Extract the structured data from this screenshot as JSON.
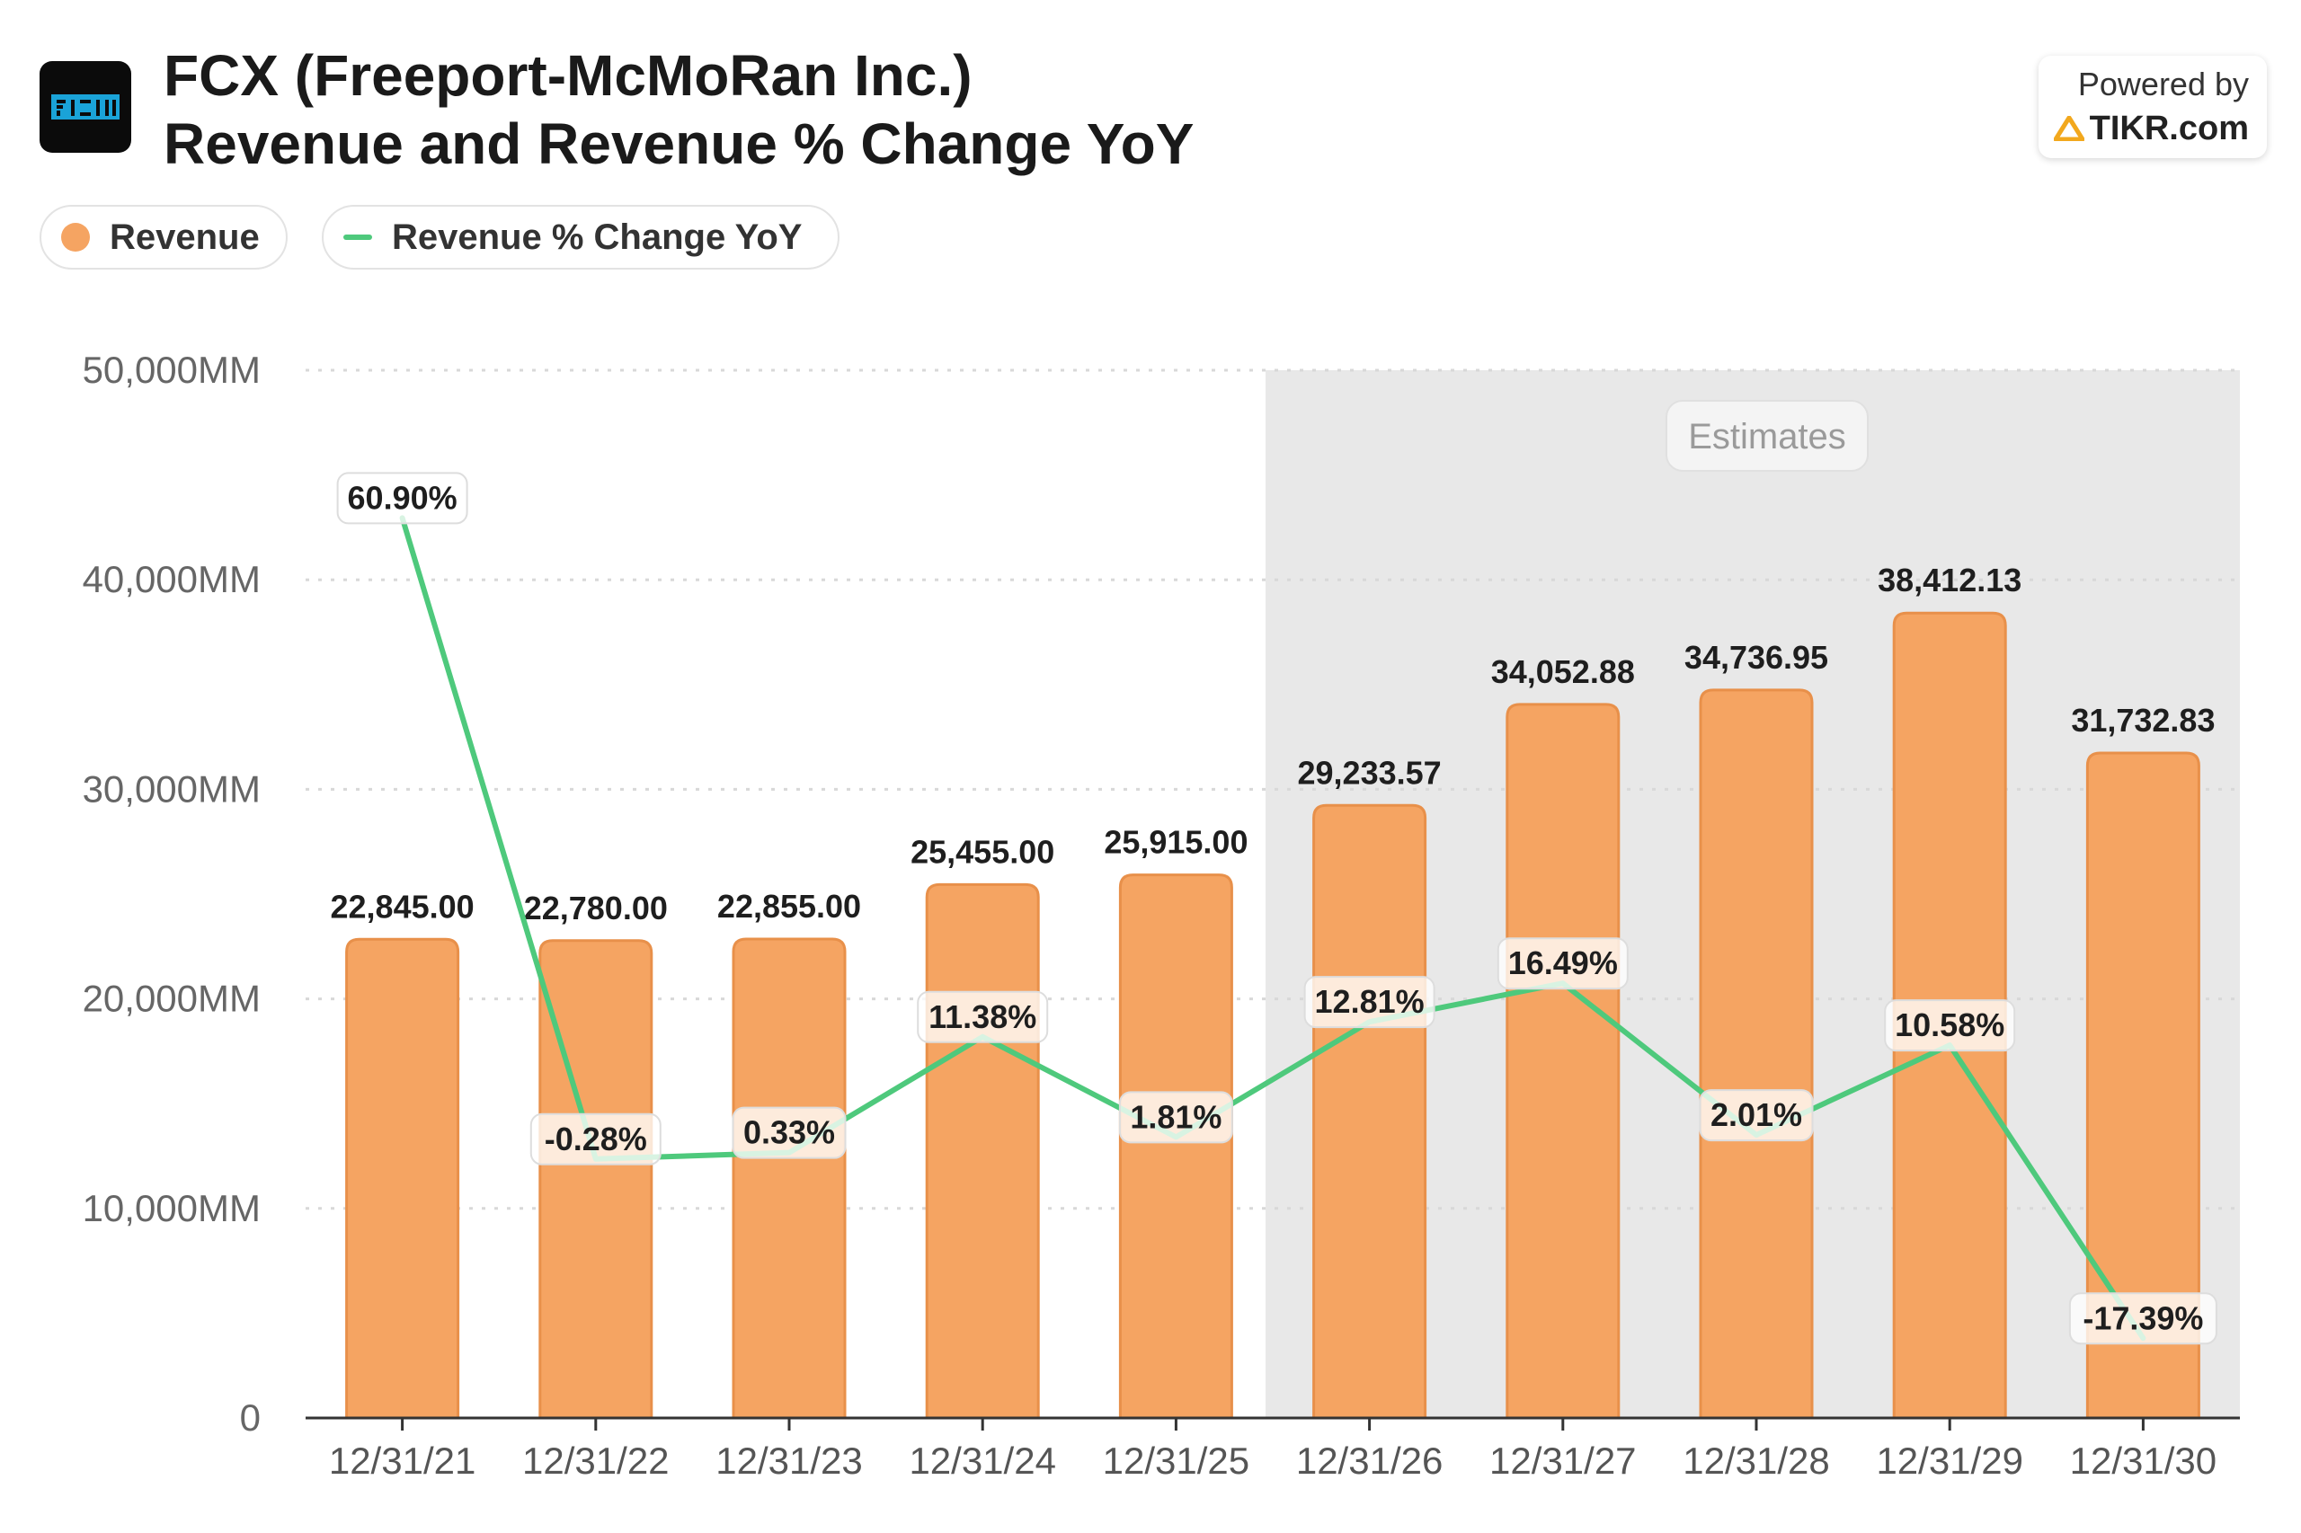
{
  "header": {
    "title_line1": "FCX (Freeport-McMoRan Inc.)",
    "title_line2": "Revenue and Revenue % Change YoY",
    "logo_icon": "freeport-mcmoran-logo",
    "powered_by": "Powered by",
    "brand": "TIKR.com",
    "brand_icon": "tikr-triangle-icon"
  },
  "legend": {
    "revenue_label": "Revenue",
    "yoy_label": "Revenue % Change YoY"
  },
  "colors": {
    "bar": "#f5a462",
    "bar_border": "#e8904a",
    "line": "#4ec97c",
    "estimates_band": "#e8e8e8",
    "grid": "#d8d8d8",
    "axis": "#333333"
  },
  "chart_data": {
    "type": "bar",
    "categories": [
      "12/31/21",
      "12/31/22",
      "12/31/23",
      "12/31/24",
      "12/31/25",
      "12/31/26",
      "12/31/27",
      "12/31/28",
      "12/31/29",
      "12/31/30"
    ],
    "series": [
      {
        "name": "Revenue",
        "type": "bar",
        "values": [
          22845.0,
          22780.0,
          22855.0,
          25455.0,
          25915.0,
          29233.57,
          34052.88,
          34736.95,
          38412.13,
          31732.83
        ],
        "labels": [
          "22,845.00",
          "22,780.00",
          "22,855.00",
          "25,455.00",
          "25,915.00",
          "29,233.57",
          "34,052.88",
          "34,736.95",
          "38,412.13",
          "31,732.83"
        ]
      },
      {
        "name": "Revenue % Change YoY",
        "type": "line",
        "values": [
          60.9,
          -0.28,
          0.33,
          11.38,
          1.81,
          12.81,
          16.49,
          2.01,
          10.58,
          -17.39
        ],
        "labels": [
          "60.90%",
          "-0.28%",
          "0.33%",
          "11.38%",
          "1.81%",
          "12.81%",
          "16.49%",
          "2.01%",
          "10.58%",
          "-17.39%"
        ],
        "secondary_axis_range": [
          -25,
          75
        ]
      }
    ],
    "y_ticks": [
      "0",
      "10,000MM",
      "20,000MM",
      "30,000MM",
      "40,000MM",
      "50,000MM"
    ],
    "ylim": [
      0,
      50000
    ],
    "grid": true,
    "legend_position": "top-left",
    "estimates": {
      "label": "Estimates",
      "start_index": 5
    }
  }
}
